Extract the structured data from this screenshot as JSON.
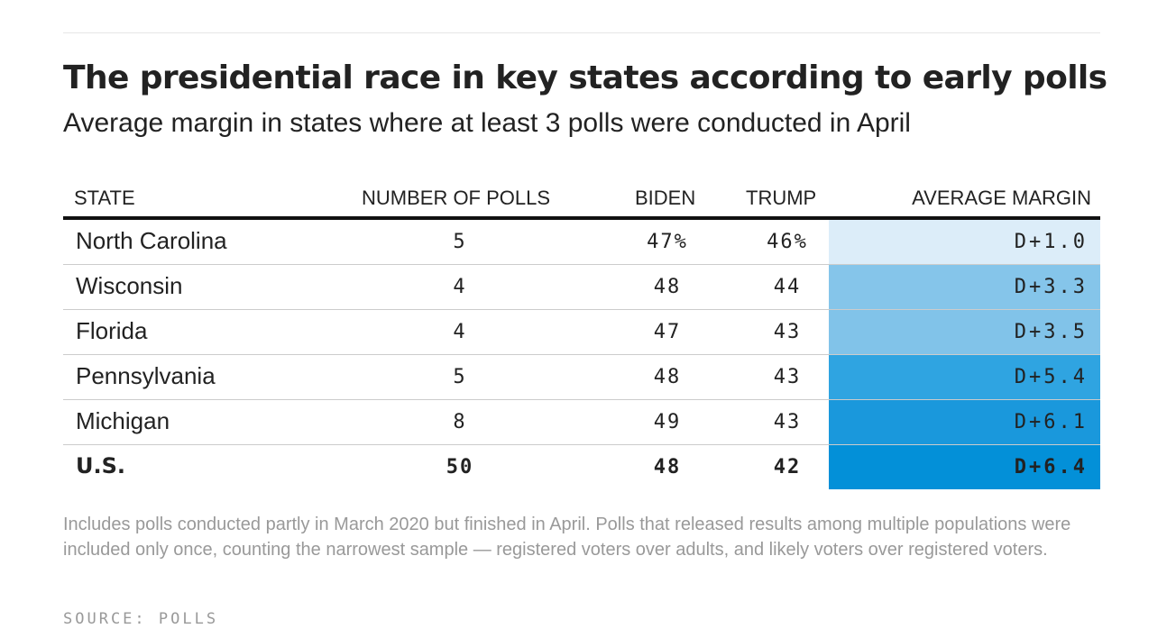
{
  "chart_data": {
    "type": "table",
    "title": "The presidential race in key states according to early polls",
    "subtitle": "Average margin in states where at least 3 polls were conducted in April",
    "columns": [
      "STATE",
      "NUMBER OF POLLS",
      "BIDEN",
      "TRUMP",
      "AVERAGE MARGIN"
    ],
    "rows": [
      {
        "state": "North Carolina",
        "polls": "5",
        "biden": "47%",
        "trump": "46%",
        "margin": "D+1.0",
        "color": "#dcedf9"
      },
      {
        "state": "Wisconsin",
        "polls": "4",
        "biden": "48",
        "trump": "44",
        "margin": "D+3.3",
        "color": "#85c5ea"
      },
      {
        "state": "Florida",
        "polls": "4",
        "biden": "47",
        "trump": "43",
        "margin": "D+3.5",
        "color": "#81c3e9"
      },
      {
        "state": "Pennsylvania",
        "polls": "5",
        "biden": "48",
        "trump": "43",
        "margin": "D+5.4",
        "color": "#2fa4e1"
      },
      {
        "state": "Michigan",
        "polls": "8",
        "biden": "49",
        "trump": "43",
        "margin": "D+6.1",
        "color": "#1a98dc"
      },
      {
        "state": "U.S.",
        "polls": "50",
        "biden": "48",
        "trump": "42",
        "margin": "D+6.4",
        "color": "#0390d8",
        "bold": true
      }
    ],
    "note": "Includes polls conducted partly in March 2020 but finished in April. Polls that released results among multiple populations were included only once, counting the narrowest sample — registered voters over adults, and likely voters over registered voters.",
    "source": "SOURCE: POLLS"
  }
}
